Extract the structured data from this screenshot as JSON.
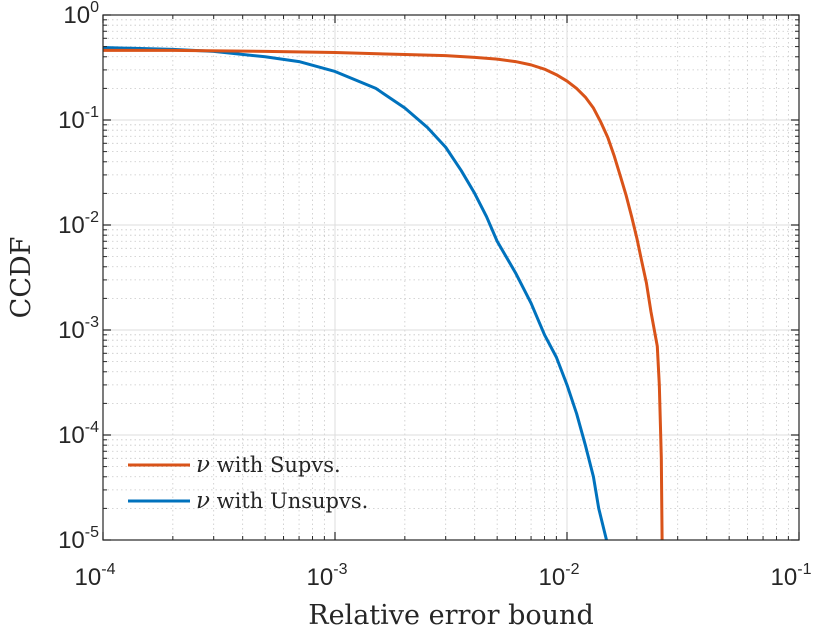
{
  "chart_data": {
    "type": "line",
    "xlabel": "Relative error bound",
    "ylabel": "CCDF",
    "x_scale": "log",
    "y_scale": "log",
    "xlim": [
      0.0001,
      0.1
    ],
    "ylim": [
      1e-05,
      1
    ],
    "grid": true,
    "minor_grid": true,
    "legend_position": "bottom-left",
    "x_ticks": [
      {
        "base": "10",
        "exp": "-4",
        "value": 0.0001
      },
      {
        "base": "10",
        "exp": "-3",
        "value": 0.001
      },
      {
        "base": "10",
        "exp": "-2",
        "value": 0.01
      },
      {
        "base": "10",
        "exp": "-1",
        "value": 0.1
      }
    ],
    "y_ticks": [
      {
        "base": "10",
        "exp": "0",
        "value": 1
      },
      {
        "base": "10",
        "exp": "-1",
        "value": 0.1
      },
      {
        "base": "10",
        "exp": "-2",
        "value": 0.01
      },
      {
        "base": "10",
        "exp": "-3",
        "value": 0.001
      },
      {
        "base": "10",
        "exp": "-4",
        "value": 0.0001
      },
      {
        "base": "10",
        "exp": "-5",
        "value": 1e-05
      }
    ],
    "series": [
      {
        "name": "ν with Supvs.",
        "symbol": "ν",
        "label_rest": " with Supvs.",
        "color": "#D95319",
        "points": [
          [
            0.0001,
            0.46
          ],
          [
            0.0002,
            0.46
          ],
          [
            0.0005,
            0.45
          ],
          [
            0.001,
            0.44
          ],
          [
            0.002,
            0.42
          ],
          [
            0.003,
            0.41
          ],
          [
            0.004,
            0.395
          ],
          [
            0.005,
            0.38
          ],
          [
            0.006,
            0.36
          ],
          [
            0.007,
            0.335
          ],
          [
            0.008,
            0.305
          ],
          [
            0.009,
            0.27
          ],
          [
            0.01,
            0.235
          ],
          [
            0.011,
            0.2
          ],
          [
            0.012,
            0.165
          ],
          [
            0.013,
            0.13
          ],
          [
            0.014,
            0.095
          ],
          [
            0.015,
            0.068
          ],
          [
            0.016,
            0.045
          ],
          [
            0.017,
            0.029
          ],
          [
            0.018,
            0.019
          ],
          [
            0.019,
            0.012
          ],
          [
            0.02,
            0.0075
          ],
          [
            0.021,
            0.0045
          ],
          [
            0.022,
            0.0028
          ],
          [
            0.023,
            0.0015
          ],
          [
            0.0245,
            0.0007
          ],
          [
            0.025,
            0.0003
          ],
          [
            0.0255,
            6e-05
          ],
          [
            0.0257,
            1e-05
          ]
        ]
      },
      {
        "name": "ν with Unsupvs.",
        "symbol": "ν",
        "label_rest": " with Unsupvs.",
        "color": "#0072BD",
        "points": [
          [
            0.0001,
            0.49
          ],
          [
            0.0002,
            0.47
          ],
          [
            0.0003,
            0.45
          ],
          [
            0.0005,
            0.4
          ],
          [
            0.0007,
            0.36
          ],
          [
            0.001,
            0.29
          ],
          [
            0.0015,
            0.2
          ],
          [
            0.002,
            0.13
          ],
          [
            0.0025,
            0.085
          ],
          [
            0.003,
            0.055
          ],
          [
            0.0035,
            0.033
          ],
          [
            0.004,
            0.02
          ],
          [
            0.0045,
            0.012
          ],
          [
            0.005,
            0.007
          ],
          [
            0.006,
            0.0035
          ],
          [
            0.007,
            0.0018
          ],
          [
            0.008,
            0.0009
          ],
          [
            0.009,
            0.00055
          ],
          [
            0.01,
            0.0003
          ],
          [
            0.011,
            0.00016
          ],
          [
            0.012,
            8e-05
          ],
          [
            0.013,
            4e-05
          ],
          [
            0.0137,
            2e-05
          ],
          [
            0.0145,
            1.2e-05
          ],
          [
            0.0148,
            1e-05
          ]
        ]
      }
    ]
  }
}
